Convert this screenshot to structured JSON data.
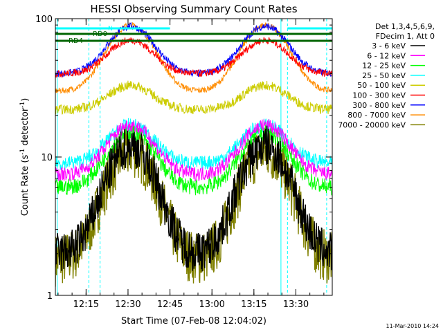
{
  "chart_data": {
    "type": "line",
    "title": "HESSI Observing Summary Count Rates",
    "xlabel": "Start Time (07-Feb-08 12:04:02)",
    "ylabel": "Count Rate (s⁻¹ detector⁻¹)",
    "ylabel_parts": {
      "prefix": "Count Rate (s",
      "exp1": "-1",
      "mid": " detector",
      "exp2": "-1",
      "suffix": ")"
    },
    "yscale": "log",
    "ylim": [
      1,
      100
    ],
    "xlim": [
      "12:04:02",
      "13:43:00"
    ],
    "y_tick_labels": [
      "1",
      "10",
      "100"
    ],
    "x_tick_labels": [
      "12:15",
      "12:30",
      "12:45",
      "13:00",
      "13:15",
      "13:30"
    ],
    "timestamp": "11-Mar-2010 14:24",
    "legend": {
      "placement": "right",
      "header": [
        "Det 1,3,4,5,6,9,",
        "FDecim 1, Att 0"
      ]
    },
    "series": [
      {
        "name": "3 - 6 keV",
        "color": "#000000"
      },
      {
        "name": "6 - 12 keV",
        "color": "#ff00ff"
      },
      {
        "name": "12 - 25 keV",
        "color": "#00ff00"
      },
      {
        "name": "25 - 50 keV",
        "color": "#00ffff"
      },
      {
        "name": "50 - 100 keV",
        "color": "#cccc00"
      },
      {
        "name": "100 - 300 keV",
        "color": "#ff0000"
      },
      {
        "name": "300 - 800 keV",
        "color": "#0000ff"
      },
      {
        "name": "800 - 7000 keV",
        "color": "#ff8c00"
      },
      {
        "name": "7000 - 20000 keV",
        "color": "#808000"
      }
    ],
    "flags": [
      {
        "label": "RD0",
        "color": "#006400"
      },
      {
        "label": "RD4",
        "color": "#006400"
      },
      {
        "label": "N",
        "color": "#00ffff"
      }
    ]
  }
}
